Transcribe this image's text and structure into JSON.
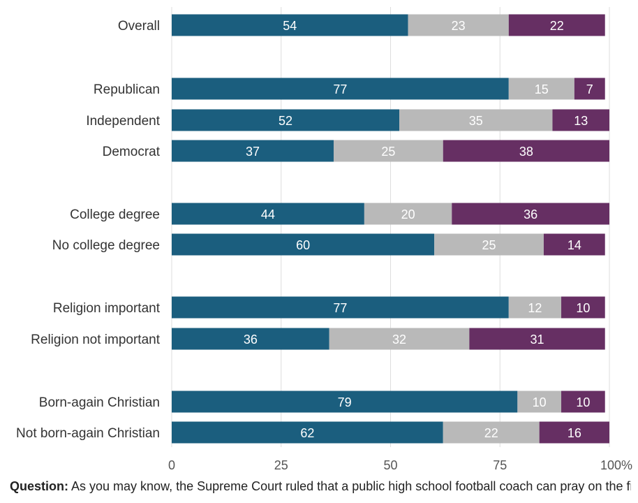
{
  "chart_data": {
    "type": "bar",
    "orientation": "horizontal",
    "stacked": true,
    "categories": [
      "Overall",
      "Republican",
      "Independent",
      "Democrat",
      "College degree",
      "No college degree",
      "Religion important",
      "Religion not important",
      "Born-again Christian",
      "Not born-again Christian"
    ],
    "series": [
      {
        "values": [
          54,
          77,
          52,
          37,
          44,
          60,
          77,
          36,
          79,
          62
        ],
        "color": "#1b5e7e"
      },
      {
        "values": [
          23,
          15,
          35,
          25,
          20,
          25,
          12,
          32,
          10,
          22
        ],
        "color": "#b9b9b9"
      },
      {
        "values": [
          22,
          7,
          13,
          38,
          36,
          14,
          10,
          31,
          10,
          16
        ],
        "color": "#662f63"
      }
    ],
    "xlim": [
      0,
      100
    ],
    "x_ticks": [
      "0",
      "25",
      "50",
      "75",
      "100%"
    ],
    "grid": true,
    "legend": "none"
  },
  "footer": {
    "question_label": "Question:",
    "question_text": "As you may know, the Supreme Court ruled that a public high school football coach can pray on the field after games. Do you agree or disagree with..."
  }
}
